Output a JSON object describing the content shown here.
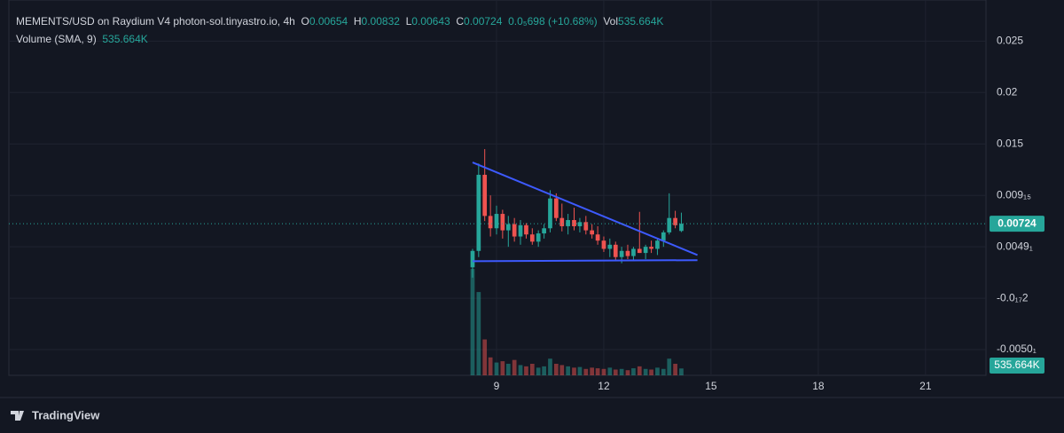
{
  "header": {
    "symbol": "MEMENTS/USD on Raydium V4 photon-sol.tinyastro.io, 4h",
    "o_label": "O",
    "h_label": "H",
    "l_label": "L",
    "c_label": "C",
    "change": "0.0₅698 (+10.68%)",
    "vol_label": "Vol",
    "vol_value": "535.664K",
    "volume_title": "Volume (SMA, 9)",
    "volume_value": "535.664K"
  },
  "chart_data": {
    "type": "candlestick",
    "up_color": "#26a69a",
    "down_color": "#ef5350",
    "grid": true,
    "x": [
      8.33,
      8.5,
      8.67,
      8.83,
      9,
      9.17,
      9.33,
      9.5,
      9.67,
      9.83,
      10,
      10.17,
      10.33,
      10.5,
      10.67,
      10.83,
      11,
      11.17,
      11.33,
      11.5,
      11.67,
      11.83,
      12,
      12.17,
      12.33,
      12.5,
      12.67,
      12.83,
      13,
      13.17,
      13.33,
      13.5,
      13.67,
      13.83,
      14,
      14.17
    ],
    "open": [
      0.003,
      0.0046,
      0.012,
      0.008,
      0.0068,
      0.0082,
      0.0066,
      0.0072,
      0.006,
      0.0071,
      0.0062,
      0.0055,
      0.0063,
      0.0068,
      0.0097,
      0.0078,
      0.007,
      0.0076,
      0.007,
      0.0074,
      0.0066,
      0.0062,
      0.0056,
      0.0048,
      0.0052,
      0.004,
      0.0046,
      0.0041,
      0.0048,
      0.0044,
      0.005,
      0.0048,
      0.0056,
      0.0064,
      0.0078,
      0.00654
    ],
    "high": [
      0.0048,
      0.0131,
      0.0145,
      0.01,
      0.009,
      0.0086,
      0.008,
      0.0078,
      0.0076,
      0.0073,
      0.0068,
      0.0066,
      0.0072,
      0.0105,
      0.0102,
      0.0092,
      0.0082,
      0.0088,
      0.0078,
      0.008,
      0.0072,
      0.007,
      0.006,
      0.0058,
      0.0055,
      0.005,
      0.0052,
      0.005,
      0.0084,
      0.0052,
      0.0056,
      0.0058,
      0.0066,
      0.0102,
      0.0085,
      0.00832
    ],
    "low": [
      0.002,
      0.004,
      0.0075,
      0.006,
      0.0062,
      0.0058,
      0.005,
      0.0055,
      0.0052,
      0.0058,
      0.0052,
      0.005,
      0.0058,
      0.0064,
      0.0075,
      0.0065,
      0.0062,
      0.0066,
      0.0064,
      0.0062,
      0.0058,
      0.0052,
      0.0045,
      0.004,
      0.0036,
      0.0034,
      0.0038,
      0.0036,
      0.0044,
      0.0038,
      0.0044,
      0.0042,
      0.005,
      0.0062,
      0.0068,
      0.00643
    ],
    "close": [
      0.0046,
      0.012,
      0.008,
      0.0068,
      0.0082,
      0.0066,
      0.0072,
      0.006,
      0.0071,
      0.0062,
      0.0055,
      0.0063,
      0.0068,
      0.0097,
      0.0078,
      0.007,
      0.0076,
      0.007,
      0.0074,
      0.0066,
      0.0062,
      0.0056,
      0.0048,
      0.0052,
      0.004,
      0.0046,
      0.0041,
      0.0048,
      0.0044,
      0.005,
      0.0048,
      0.0056,
      0.0064,
      0.0078,
      0.0071,
      0.00724
    ],
    "volume": [
      8300,
      6500,
      2800,
      1400,
      1000,
      1100,
      900,
      1200,
      800,
      700,
      900,
      600,
      700,
      1300,
      900,
      800,
      700,
      600,
      650,
      500,
      600,
      550,
      500,
      600,
      450,
      500,
      400,
      550,
      700,
      500,
      450,
      600,
      500,
      1300,
      900,
      535.664
    ],
    "volume_lim": [
      0,
      9000
    ],
    "xlim": [
      -4.64,
      22.69
    ],
    "xticks": [
      9,
      12,
      15,
      18,
      21
    ],
    "ylim": [
      -0.0075,
      0.029
    ],
    "yticks": [
      {
        "value": -0.005,
        "label": "-0.0050₁"
      },
      {
        "value": 0,
        "label": "-0.0₁₇2"
      },
      {
        "value": 0.005,
        "label": "0.0049₁"
      },
      {
        "value": 0.01,
        "label": "0.009₁₅"
      },
      0.015,
      0.02,
      0.025
    ],
    "trendline_color": "#3d5afe",
    "trendlines": [
      {
        "x": [
          8.33,
          14.62
        ],
        "y": [
          0.0132,
          0.0042
        ]
      },
      {
        "x": [
          8.33,
          14.62
        ],
        "y": [
          0.0036,
          0.0037
        ]
      }
    ]
  },
  "footer": {
    "brand": "TradingView"
  }
}
